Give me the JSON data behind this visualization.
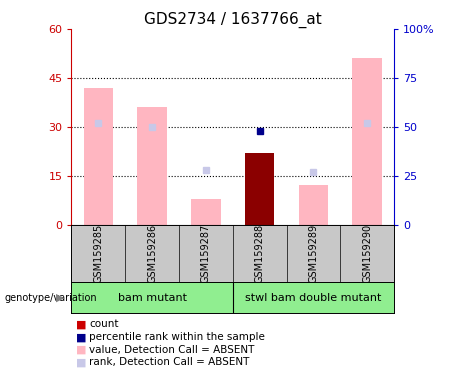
{
  "title": "GDS2734 / 1637766_at",
  "samples": [
    "GSM159285",
    "GSM159286",
    "GSM159287",
    "GSM159288",
    "GSM159289",
    "GSM159290"
  ],
  "bar_values": [
    42,
    36,
    8,
    22,
    12,
    51
  ],
  "bar_colors": [
    "#ffb6c1",
    "#ffb6c1",
    "#ffb6c1",
    "#8b0000",
    "#ffb6c1",
    "#ffb6c1"
  ],
  "rank_sq_values": [
    52,
    50,
    null,
    null,
    null,
    52
  ],
  "rank_sq_colors": [
    "#c8c8e8",
    "#c8c8e8",
    null,
    null,
    null,
    "#c8c8e8"
  ],
  "pct_rank_values": [
    null,
    null,
    null,
    48,
    null,
    null
  ],
  "absent_rank_values": [
    null,
    null,
    28,
    null,
    27,
    null
  ],
  "absent_rank_colors": [
    "#c8c8e8",
    "#c8c8e8",
    "#c8c8e8",
    "#c8c8e8",
    "#c8c8e8",
    "#c8c8e8"
  ],
  "ylim_left": [
    0,
    60
  ],
  "ylim_right": [
    0,
    100
  ],
  "yticks_left": [
    0,
    15,
    30,
    45,
    60
  ],
  "yticks_right": [
    0,
    25,
    50,
    75,
    100
  ],
  "ytick_labels_left": [
    "0",
    "15",
    "30",
    "45",
    "60"
  ],
  "ytick_labels_right": [
    "0",
    "25",
    "50",
    "75",
    "100%"
  ],
  "left_axis_color": "#cc0000",
  "right_axis_color": "#0000cc",
  "group1_label": "bam mutant",
  "group2_label": "stwl bam double mutant",
  "group_color": "#90ee90",
  "legend_items": [
    {
      "label": "count",
      "color": "#cc0000"
    },
    {
      "label": "percentile rank within the sample",
      "color": "#00008b"
    },
    {
      "label": "value, Detection Call = ABSENT",
      "color": "#ffb6c1"
    },
    {
      "label": "rank, Detection Call = ABSENT",
      "color": "#c8c8e8"
    }
  ],
  "genotype_label": "genotype/variation",
  "sample_box_color": "#c8c8c8",
  "fig_width": 4.61,
  "fig_height": 3.84,
  "dpi": 100
}
